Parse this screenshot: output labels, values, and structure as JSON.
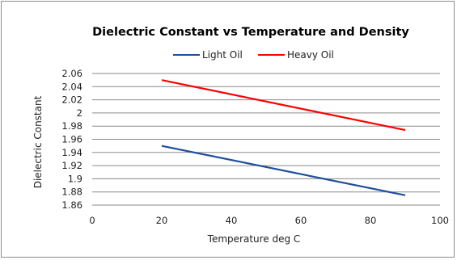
{
  "chart_data": {
    "type": "line",
    "title": "Dielectric Constant  vs Temperature and Density",
    "xlabel": "Temperature deg C",
    "ylabel": "Dielectric Constant",
    "xlim": [
      0,
      100
    ],
    "ylim": [
      1.86,
      2.06
    ],
    "x_ticks": [
      "0",
      "20",
      "40",
      "60",
      "80",
      "100"
    ],
    "y_ticks": [
      "1.86",
      "1.88",
      "1.9",
      "1.92",
      "1.94",
      "1.96",
      "1.98",
      "2",
      "2.02",
      "2.04",
      "2.06"
    ],
    "grid": "horizontal",
    "legend_position": "top",
    "series": [
      {
        "name": "Light Oil",
        "color": "#1f4e9c",
        "x": [
          20,
          90
        ],
        "y": [
          1.95,
          1.875
        ]
      },
      {
        "name": "Heavy Oil",
        "color": "#ff0000",
        "x": [
          20,
          90
        ],
        "y": [
          2.05,
          1.974
        ]
      }
    ]
  }
}
